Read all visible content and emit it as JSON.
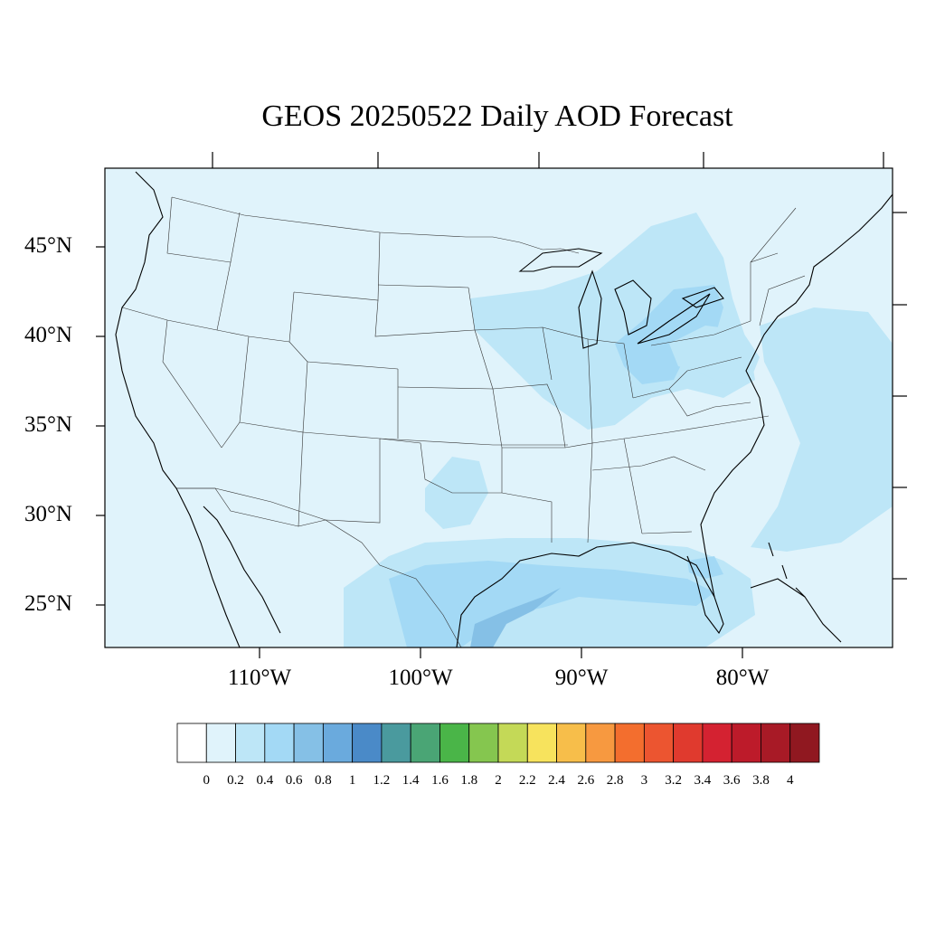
{
  "title": "GEOS 20250522 Daily AOD Forecast",
  "map": {
    "region": "Contiguous United States",
    "variable": "Aerosol Optical Depth",
    "lon_range": [
      -119,
      -71
    ],
    "lat_range": [
      22.8,
      49.4
    ],
    "lat_ticks": [
      {
        "value": 45,
        "label": "45°N"
      },
      {
        "value": 40,
        "label": "40°N"
      },
      {
        "value": 35,
        "label": "35°N"
      },
      {
        "value": 30,
        "label": "30°N"
      },
      {
        "value": 25,
        "label": "25°N"
      }
    ],
    "lon_ticks": [
      {
        "value": -110,
        "label": "110°W"
      },
      {
        "value": -100,
        "label": "100°W"
      },
      {
        "value": -90,
        "label": "90°W"
      },
      {
        "value": -80,
        "label": "80°W"
      }
    ],
    "background_color": "#e0f3fb",
    "aod_patches": [
      {
        "region": "Great Lakes / Ohio Valley",
        "level": 0.4,
        "color": "#bde6f7"
      },
      {
        "region": "Lake Erie / Ohio",
        "level": 0.6,
        "color": "#a3d9f5"
      },
      {
        "region": "Mid-Atlantic",
        "level": 0.4,
        "color": "#bde6f7"
      },
      {
        "region": "Western Atlantic",
        "level": 0.4,
        "color": "#bde6f7"
      },
      {
        "region": "Gulf of Mexico",
        "level": 0.4,
        "color": "#bde6f7"
      },
      {
        "region": "Northwest Gulf",
        "level": 0.6,
        "color": "#a3d9f5"
      },
      {
        "region": "Texas coast",
        "level": 0.8,
        "color": "#85c0e6"
      },
      {
        "region": "Northern Mexico",
        "level": 0.4,
        "color": "#bde6f7"
      },
      {
        "region": "Florida Keys",
        "level": 0.6,
        "color": "#a3d9f5"
      }
    ]
  },
  "colorbar": {
    "colors": [
      "#ffffff",
      "#e0f3fb",
      "#bde6f7",
      "#a3d9f5",
      "#85c0e6",
      "#6aaadd",
      "#4a8ac8",
      "#4a9a9e",
      "#4aa575",
      "#4ab548",
      "#85c64f",
      "#c4d957",
      "#f7e35d",
      "#f7be4a",
      "#f79940",
      "#f36e2e",
      "#ec5530",
      "#e03a2e",
      "#d42231",
      "#bd1b2a",
      "#a81a26",
      "#901820"
    ],
    "labels": [
      "0",
      "0.2",
      "0.4",
      "0.6",
      "0.8",
      "1",
      "1.2",
      "1.4",
      "1.6",
      "1.8",
      "2",
      "2.2",
      "2.4",
      "2.6",
      "2.8",
      "3",
      "3.2",
      "3.4",
      "3.6",
      "3.8",
      "4"
    ]
  }
}
